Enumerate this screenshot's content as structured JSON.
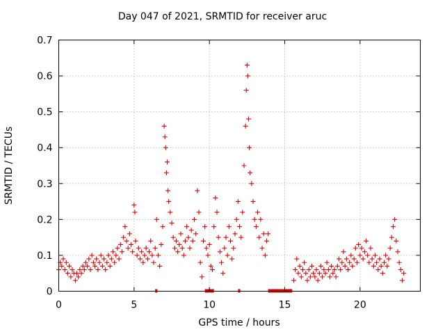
{
  "chart_data": {
    "type": "scatter",
    "title": "Day 047 of 2021, SRMTID for receiver aruc",
    "xlabel": "GPS time / hours",
    "ylabel": "SRMTID / TECUs",
    "xlim": [
      0,
      24
    ],
    "ylim": [
      0,
      0.7
    ],
    "xticks": [
      0,
      5,
      10,
      15,
      20
    ],
    "yticks": [
      0,
      0.1,
      0.2,
      0.3,
      0.4,
      0.5,
      0.6,
      0.7
    ],
    "grid": true,
    "marker": "+",
    "color": "#e00000",
    "series": [
      {
        "name": "SRMTID",
        "points": [
          [
            0.0,
            0.06
          ],
          [
            0.1,
            0.08
          ],
          [
            0.2,
            0.07
          ],
          [
            0.3,
            0.09
          ],
          [
            0.4,
            0.06
          ],
          [
            0.5,
            0.08
          ],
          [
            0.6,
            0.05
          ],
          [
            0.7,
            0.07
          ],
          [
            0.8,
            0.04
          ],
          [
            0.9,
            0.06
          ],
          [
            1.0,
            0.05
          ],
          [
            1.1,
            0.03
          ],
          [
            1.2,
            0.05
          ],
          [
            1.3,
            0.04
          ],
          [
            1.4,
            0.06
          ],
          [
            1.5,
            0.05
          ],
          [
            1.6,
            0.07
          ],
          [
            1.7,
            0.06
          ],
          [
            1.8,
            0.08
          ],
          [
            1.9,
            0.07
          ],
          [
            2.0,
            0.09
          ],
          [
            2.1,
            0.06
          ],
          [
            2.2,
            0.1
          ],
          [
            2.3,
            0.08
          ],
          [
            2.4,
            0.07
          ],
          [
            2.5,
            0.09
          ],
          [
            2.6,
            0.06
          ],
          [
            2.7,
            0.08
          ],
          [
            2.8,
            0.1
          ],
          [
            2.9,
            0.07
          ],
          [
            3.0,
            0.09
          ],
          [
            3.1,
            0.06
          ],
          [
            3.2,
            0.08
          ],
          [
            3.3,
            0.1
          ],
          [
            3.4,
            0.07
          ],
          [
            3.5,
            0.09
          ],
          [
            3.6,
            0.11
          ],
          [
            3.7,
            0.08
          ],
          [
            3.8,
            0.1
          ],
          [
            3.9,
            0.12
          ],
          [
            4.0,
            0.09
          ],
          [
            4.1,
            0.13
          ],
          [
            4.2,
            0.11
          ],
          [
            4.3,
            0.15
          ],
          [
            4.4,
            0.18
          ],
          [
            4.5,
            0.14
          ],
          [
            4.6,
            0.12
          ],
          [
            4.7,
            0.16
          ],
          [
            4.8,
            0.13
          ],
          [
            4.9,
            0.11
          ],
          [
            5.0,
            0.24
          ],
          [
            5.05,
            0.22
          ],
          [
            5.1,
            0.14
          ],
          [
            5.2,
            0.1
          ],
          [
            5.3,
            0.12
          ],
          [
            5.4,
            0.09
          ],
          [
            5.5,
            0.11
          ],
          [
            5.6,
            0.08
          ],
          [
            5.7,
            0.1
          ],
          [
            5.8,
            0.12
          ],
          [
            5.9,
            0.09
          ],
          [
            6.0,
            0.11
          ],
          [
            6.1,
            0.14
          ],
          [
            6.2,
            0.1
          ],
          [
            6.3,
            0.08
          ],
          [
            6.4,
            0.12
          ],
          [
            6.5,
            0.2
          ],
          [
            6.6,
            0.1
          ],
          [
            6.7,
            0.07
          ],
          [
            6.8,
            0.13
          ],
          [
            6.9,
            0.18
          ],
          [
            7.0,
            0.46
          ],
          [
            7.05,
            0.43
          ],
          [
            7.1,
            0.4
          ],
          [
            7.15,
            0.33
          ],
          [
            7.2,
            0.36
          ],
          [
            7.25,
            0.28
          ],
          [
            7.3,
            0.25
          ],
          [
            7.4,
            0.22
          ],
          [
            7.5,
            0.19
          ],
          [
            7.6,
            0.15
          ],
          [
            7.7,
            0.12
          ],
          [
            7.8,
            0.14
          ],
          [
            7.9,
            0.11
          ],
          [
            8.0,
            0.13
          ],
          [
            8.1,
            0.16
          ],
          [
            8.2,
            0.12
          ],
          [
            8.3,
            0.1
          ],
          [
            8.4,
            0.14
          ],
          [
            8.5,
            0.18
          ],
          [
            8.6,
            0.15
          ],
          [
            8.7,
            0.12
          ],
          [
            8.8,
            0.17
          ],
          [
            8.9,
            0.14
          ],
          [
            9.0,
            0.2
          ],
          [
            9.1,
            0.16
          ],
          [
            9.2,
            0.28
          ],
          [
            9.3,
            0.22
          ],
          [
            9.4,
            0.08
          ],
          [
            9.5,
            0.04
          ],
          [
            9.6,
            0.14
          ],
          [
            9.7,
            0.18
          ],
          [
            9.8,
            0.12
          ],
          [
            9.9,
            0.1
          ],
          [
            10.0,
            0.13
          ],
          [
            10.1,
            0.07
          ],
          [
            10.2,
            0.06
          ],
          [
            10.3,
            0.18
          ],
          [
            10.4,
            0.26
          ],
          [
            10.5,
            0.22
          ],
          [
            10.6,
            0.15
          ],
          [
            10.7,
            0.11
          ],
          [
            10.8,
            0.08
          ],
          [
            10.9,
            0.05
          ],
          [
            11.0,
            0.12
          ],
          [
            11.1,
            0.15
          ],
          [
            11.2,
            0.1
          ],
          [
            11.3,
            0.18
          ],
          [
            11.4,
            0.14
          ],
          [
            11.5,
            0.09
          ],
          [
            11.6,
            0.12
          ],
          [
            11.7,
            0.16
          ],
          [
            11.8,
            0.2
          ],
          [
            11.9,
            0.25
          ],
          [
            12.0,
            0.18
          ],
          [
            12.1,
            0.15
          ],
          [
            12.2,
            0.22
          ],
          [
            12.3,
            0.35
          ],
          [
            12.4,
            0.46
          ],
          [
            12.45,
            0.56
          ],
          [
            12.5,
            0.63
          ],
          [
            12.55,
            0.6
          ],
          [
            12.6,
            0.48
          ],
          [
            12.65,
            0.4
          ],
          [
            12.7,
            0.33
          ],
          [
            12.8,
            0.3
          ],
          [
            12.9,
            0.25
          ],
          [
            13.0,
            0.2
          ],
          [
            13.1,
            0.18
          ],
          [
            13.2,
            0.22
          ],
          [
            13.3,
            0.15
          ],
          [
            13.4,
            0.2
          ],
          [
            13.5,
            0.12
          ],
          [
            13.6,
            0.16
          ],
          [
            13.7,
            0.1
          ],
          [
            13.8,
            0.14
          ],
          [
            13.9,
            0.16
          ],
          [
            15.6,
            0.03
          ],
          [
            15.7,
            0.06
          ],
          [
            15.8,
            0.09
          ],
          [
            15.9,
            0.05
          ],
          [
            16.0,
            0.07
          ],
          [
            16.1,
            0.04
          ],
          [
            16.2,
            0.06
          ],
          [
            16.3,
            0.08
          ],
          [
            16.4,
            0.05
          ],
          [
            16.5,
            0.03
          ],
          [
            16.6,
            0.06
          ],
          [
            16.7,
            0.04
          ],
          [
            16.8,
            0.07
          ],
          [
            16.9,
            0.05
          ],
          [
            17.0,
            0.04
          ],
          [
            17.1,
            0.06
          ],
          [
            17.2,
            0.03
          ],
          [
            17.3,
            0.05
          ],
          [
            17.4,
            0.07
          ],
          [
            17.5,
            0.04
          ],
          [
            17.6,
            0.06
          ],
          [
            17.7,
            0.05
          ],
          [
            17.8,
            0.08
          ],
          [
            17.9,
            0.06
          ],
          [
            18.0,
            0.04
          ],
          [
            18.1,
            0.07
          ],
          [
            18.2,
            0.05
          ],
          [
            18.3,
            0.06
          ],
          [
            18.4,
            0.04
          ],
          [
            18.5,
            0.07
          ],
          [
            18.6,
            0.09
          ],
          [
            18.7,
            0.06
          ],
          [
            18.8,
            0.08
          ],
          [
            18.9,
            0.11
          ],
          [
            19.0,
            0.07
          ],
          [
            19.1,
            0.09
          ],
          [
            19.2,
            0.06
          ],
          [
            19.3,
            0.08
          ],
          [
            19.4,
            0.1
          ],
          [
            19.5,
            0.07
          ],
          [
            19.6,
            0.09
          ],
          [
            19.7,
            0.12
          ],
          [
            19.8,
            0.08
          ],
          [
            19.9,
            0.13
          ],
          [
            20.0,
            0.1
          ],
          [
            20.1,
            0.12
          ],
          [
            20.2,
            0.09
          ],
          [
            20.3,
            0.11
          ],
          [
            20.4,
            0.14
          ],
          [
            20.5,
            0.1
          ],
          [
            20.6,
            0.08
          ],
          [
            20.7,
            0.12
          ],
          [
            20.8,
            0.09
          ],
          [
            20.9,
            0.07
          ],
          [
            21.0,
            0.1
          ],
          [
            21.1,
            0.08
          ],
          [
            21.2,
            0.06
          ],
          [
            21.3,
            0.09
          ],
          [
            21.4,
            0.07
          ],
          [
            21.5,
            0.05
          ],
          [
            21.6,
            0.08
          ],
          [
            21.7,
            0.1
          ],
          [
            21.8,
            0.07
          ],
          [
            21.9,
            0.09
          ],
          [
            22.0,
            0.12
          ],
          [
            22.1,
            0.15
          ],
          [
            22.2,
            0.18
          ],
          [
            22.3,
            0.2
          ],
          [
            22.4,
            0.14
          ],
          [
            22.5,
            0.11
          ],
          [
            22.6,
            0.08
          ],
          [
            22.7,
            0.06
          ],
          [
            22.8,
            0.03
          ],
          [
            22.9,
            0.05
          ]
        ],
        "zero_segments": [
          [
            6.4,
            6.55
          ],
          [
            9.7,
            10.3
          ],
          [
            11.9,
            12.05
          ],
          [
            13.9,
            15.5
          ]
        ]
      }
    ]
  }
}
